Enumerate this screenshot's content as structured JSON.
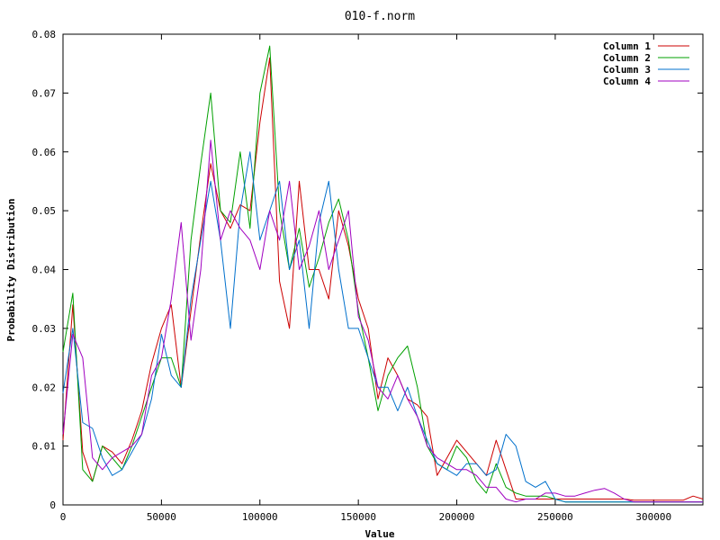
{
  "chart_data": {
    "type": "line",
    "title": "010-f.norm",
    "xlabel": "Value",
    "ylabel": "Probability Distribution",
    "xlim": [
      0,
      325000
    ],
    "ylim": [
      0,
      0.08
    ],
    "x_ticks": [
      0,
      50000,
      100000,
      150000,
      200000,
      250000,
      300000
    ],
    "x_tick_labels": [
      "0",
      "50000",
      "100000",
      "150000",
      "200000",
      "250000",
      "300000"
    ],
    "y_ticks": [
      0,
      0.01,
      0.02,
      0.03,
      0.04,
      0.05,
      0.06,
      0.07,
      0.08
    ],
    "y_tick_labels": [
      "0",
      "0.01",
      "0.02",
      "0.03",
      "0.04",
      "0.05",
      "0.06",
      "0.07",
      "0.08"
    ],
    "grid": false,
    "legend_position": "top-right",
    "x": [
      0,
      5000,
      10000,
      15000,
      20000,
      25000,
      30000,
      35000,
      40000,
      45000,
      50000,
      55000,
      60000,
      65000,
      70000,
      75000,
      80000,
      85000,
      90000,
      95000,
      100000,
      105000,
      110000,
      115000,
      120000,
      125000,
      130000,
      135000,
      140000,
      145000,
      150000,
      155000,
      160000,
      165000,
      170000,
      175000,
      180000,
      185000,
      190000,
      195000,
      200000,
      205000,
      210000,
      215000,
      220000,
      225000,
      230000,
      235000,
      240000,
      245000,
      250000,
      255000,
      260000,
      265000,
      270000,
      275000,
      280000,
      285000,
      290000,
      295000,
      300000,
      305000,
      310000,
      315000,
      320000,
      325000
    ],
    "series": [
      {
        "name": "Column 1",
        "color": "#cc0000",
        "values": [
          0.011,
          0.034,
          0.009,
          0.004,
          0.01,
          0.009,
          0.007,
          0.011,
          0.016,
          0.024,
          0.03,
          0.034,
          0.02,
          0.033,
          0.046,
          0.058,
          0.05,
          0.047,
          0.051,
          0.05,
          0.065,
          0.076,
          0.038,
          0.03,
          0.055,
          0.04,
          0.04,
          0.035,
          0.05,
          0.044,
          0.035,
          0.03,
          0.018,
          0.025,
          0.022,
          0.018,
          0.017,
          0.015,
          0.005,
          0.008,
          0.011,
          0.009,
          0.007,
          0.005,
          0.011,
          0.006,
          0.001,
          0.001,
          0.001,
          0.001,
          0.001,
          0.001,
          0.001,
          0.001,
          0.001,
          0.001,
          0.001,
          0.001,
          0.0008,
          0.0008,
          0.0008,
          0.0008,
          0.0008,
          0.0008,
          0.0015,
          0.001
        ]
      },
      {
        "name": "Column 2",
        "color": "#00a000",
        "values": [
          0.026,
          0.036,
          0.006,
          0.004,
          0.01,
          0.008,
          0.006,
          0.01,
          0.015,
          0.02,
          0.025,
          0.025,
          0.02,
          0.045,
          0.058,
          0.07,
          0.05,
          0.048,
          0.06,
          0.047,
          0.07,
          0.078,
          0.05,
          0.04,
          0.047,
          0.037,
          0.042,
          0.048,
          0.052,
          0.045,
          0.033,
          0.025,
          0.016,
          0.022,
          0.025,
          0.027,
          0.02,
          0.01,
          0.007,
          0.006,
          0.01,
          0.008,
          0.004,
          0.002,
          0.007,
          0.003,
          0.002,
          0.0015,
          0.0015,
          0.0015,
          0.001,
          0.0005,
          0.0005,
          0.0005,
          0.0005,
          0.0005,
          0.0005,
          0.0005,
          0.0005,
          0.0005,
          0.0005,
          0.0005,
          0.0005,
          0.0005,
          0.0005,
          0.0005
        ]
      },
      {
        "name": "Column 3",
        "color": "#0070cc",
        "values": [
          0.019,
          0.03,
          0.014,
          0.013,
          0.008,
          0.005,
          0.006,
          0.009,
          0.012,
          0.018,
          0.029,
          0.022,
          0.02,
          0.035,
          0.045,
          0.055,
          0.045,
          0.03,
          0.05,
          0.06,
          0.045,
          0.05,
          0.055,
          0.04,
          0.045,
          0.03,
          0.048,
          0.055,
          0.04,
          0.03,
          0.03,
          0.025,
          0.02,
          0.02,
          0.016,
          0.02,
          0.015,
          0.011,
          0.007,
          0.006,
          0.005,
          0.007,
          0.007,
          0.005,
          0.006,
          0.012,
          0.01,
          0.004,
          0.003,
          0.004,
          0.001,
          0.0005,
          0.0005,
          0.0005,
          0.0005,
          0.0005,
          0.0005,
          0.0005,
          0.0005,
          0.0005,
          0.0005,
          0.0005,
          0.0005,
          0.0005,
          0.0005,
          0.0005
        ]
      },
      {
        "name": "Column 4",
        "color": "#a000c0",
        "values": [
          0.012,
          0.029,
          0.025,
          0.008,
          0.006,
          0.008,
          0.009,
          0.01,
          0.012,
          0.022,
          0.025,
          0.035,
          0.048,
          0.028,
          0.04,
          0.062,
          0.045,
          0.05,
          0.047,
          0.045,
          0.04,
          0.05,
          0.045,
          0.055,
          0.04,
          0.044,
          0.05,
          0.04,
          0.045,
          0.05,
          0.032,
          0.028,
          0.02,
          0.018,
          0.022,
          0.018,
          0.015,
          0.01,
          0.008,
          0.007,
          0.006,
          0.006,
          0.005,
          0.003,
          0.003,
          0.001,
          0.0005,
          0.001,
          0.001,
          0.002,
          0.002,
          0.0015,
          0.0015,
          0.002,
          0.0025,
          0.0028,
          0.002,
          0.001,
          0.0005,
          0.0005,
          0.0005,
          0.0005,
          0.0005,
          0.0005,
          0.0005,
          0.0005
        ]
      }
    ]
  }
}
